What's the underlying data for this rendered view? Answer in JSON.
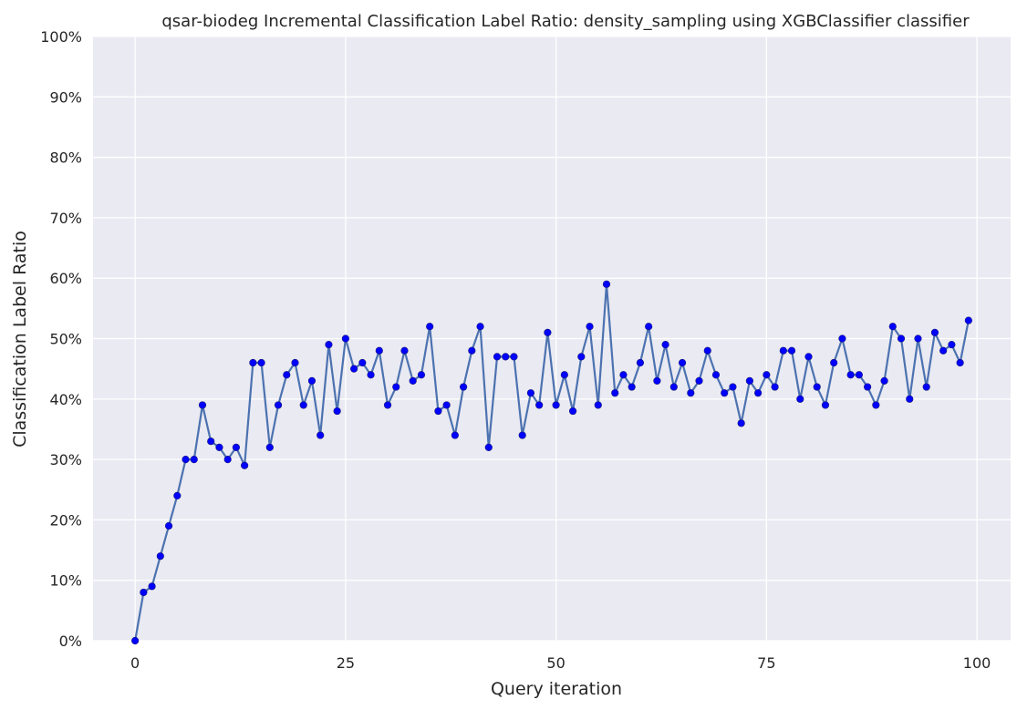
{
  "chart_data": {
    "type": "line",
    "title": "qsar-biodeg Incremental Classification Label Ratio: density_sampling using XGBClassifier classifier",
    "xlabel": "Query iteration",
    "ylabel": "Classification Label Ratio",
    "xlim": [
      -5,
      104
    ],
    "ylim": [
      0,
      1
    ],
    "x_ticks": [
      0,
      25,
      50,
      75,
      100
    ],
    "y_ticks": [
      0,
      0.1,
      0.2,
      0.3,
      0.4,
      0.5,
      0.6,
      0.7,
      0.8,
      0.9,
      1.0
    ],
    "y_tick_labels": [
      "0%",
      "10%",
      "20%",
      "30%",
      "40%",
      "50%",
      "60%",
      "70%",
      "80%",
      "90%",
      "100%"
    ],
    "grid": true,
    "background": "#eaeaf2",
    "line_color": "#4c72b0",
    "marker_color": "#0000ff",
    "series": [
      {
        "x": [
          0,
          1,
          2,
          3,
          4,
          5,
          6,
          7,
          8,
          9,
          10,
          11,
          12,
          13,
          14,
          15,
          16,
          17,
          18,
          19,
          20,
          21,
          22,
          23,
          24,
          25,
          26,
          27,
          28,
          29,
          30,
          31,
          32,
          33,
          34,
          35,
          36,
          37,
          38,
          39,
          40,
          41,
          42,
          43,
          44,
          45,
          46,
          47,
          48,
          49,
          50,
          51,
          52,
          53,
          54,
          55,
          56,
          57,
          58,
          59,
          60,
          61,
          62,
          63,
          64,
          65,
          66,
          67,
          68,
          69,
          70,
          71,
          72,
          73,
          74,
          75,
          76,
          77,
          78,
          79,
          80,
          81,
          82,
          83,
          84,
          85,
          86,
          87,
          88,
          89,
          90,
          91,
          92,
          93,
          94,
          95,
          96,
          97,
          98,
          99
        ],
        "values": [
          0.0,
          0.08,
          0.09,
          0.14,
          0.19,
          0.24,
          0.3,
          0.3,
          0.39,
          0.33,
          0.32,
          0.3,
          0.32,
          0.29,
          0.46,
          0.46,
          0.32,
          0.39,
          0.44,
          0.46,
          0.39,
          0.43,
          0.34,
          0.49,
          0.38,
          0.5,
          0.45,
          0.46,
          0.44,
          0.48,
          0.39,
          0.42,
          0.48,
          0.43,
          0.44,
          0.52,
          0.38,
          0.39,
          0.34,
          0.42,
          0.48,
          0.52,
          0.32,
          0.47,
          0.47,
          0.47,
          0.34,
          0.41,
          0.39,
          0.51,
          0.39,
          0.44,
          0.38,
          0.47,
          0.52,
          0.39,
          0.59,
          0.41,
          0.44,
          0.42,
          0.46,
          0.52,
          0.43,
          0.49,
          0.42,
          0.46,
          0.41,
          0.43,
          0.48,
          0.44,
          0.41,
          0.42,
          0.36,
          0.43,
          0.41,
          0.44,
          0.42,
          0.48,
          0.48,
          0.4,
          0.47,
          0.42,
          0.39,
          0.46,
          0.5,
          0.44,
          0.44,
          0.42,
          0.39,
          0.43,
          0.52,
          0.5,
          0.4,
          0.5,
          0.42,
          0.51,
          0.48,
          0.49,
          0.46,
          0.53
        ]
      }
    ]
  }
}
